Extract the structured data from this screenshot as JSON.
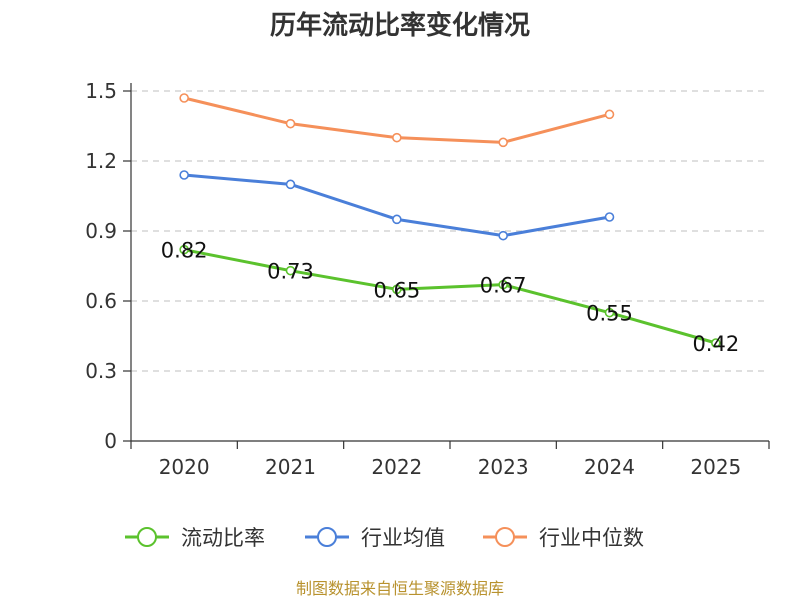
{
  "chart_data": {
    "type": "line",
    "title": "历年流动比率变化情况",
    "categories": [
      "2020",
      "2021",
      "2022",
      "2023",
      "2024",
      "2025"
    ],
    "ylim": [
      0,
      1.5
    ],
    "yticks": [
      "0",
      "0.3",
      "0.6",
      "0.9",
      "1.2",
      "1.5"
    ],
    "grid": true,
    "legend_position": "bottom",
    "series": [
      {
        "name": "流动比率",
        "color": "#5bc22d",
        "values": [
          0.82,
          0.73,
          0.65,
          0.67,
          0.55,
          0.42
        ],
        "labels": [
          "0.82",
          "0.73",
          "0.65",
          "0.67",
          "0.55",
          "0.42"
        ]
      },
      {
        "name": "行业均值",
        "color": "#4a7fd9",
        "values": [
          1.14,
          1.1,
          0.95,
          0.88,
          0.96,
          null
        ]
      },
      {
        "name": "行业中位数",
        "color": "#f5905a",
        "values": [
          1.47,
          1.36,
          1.3,
          1.28,
          1.4,
          null
        ]
      }
    ],
    "source": "制图数据来自恒生聚源数据库"
  }
}
